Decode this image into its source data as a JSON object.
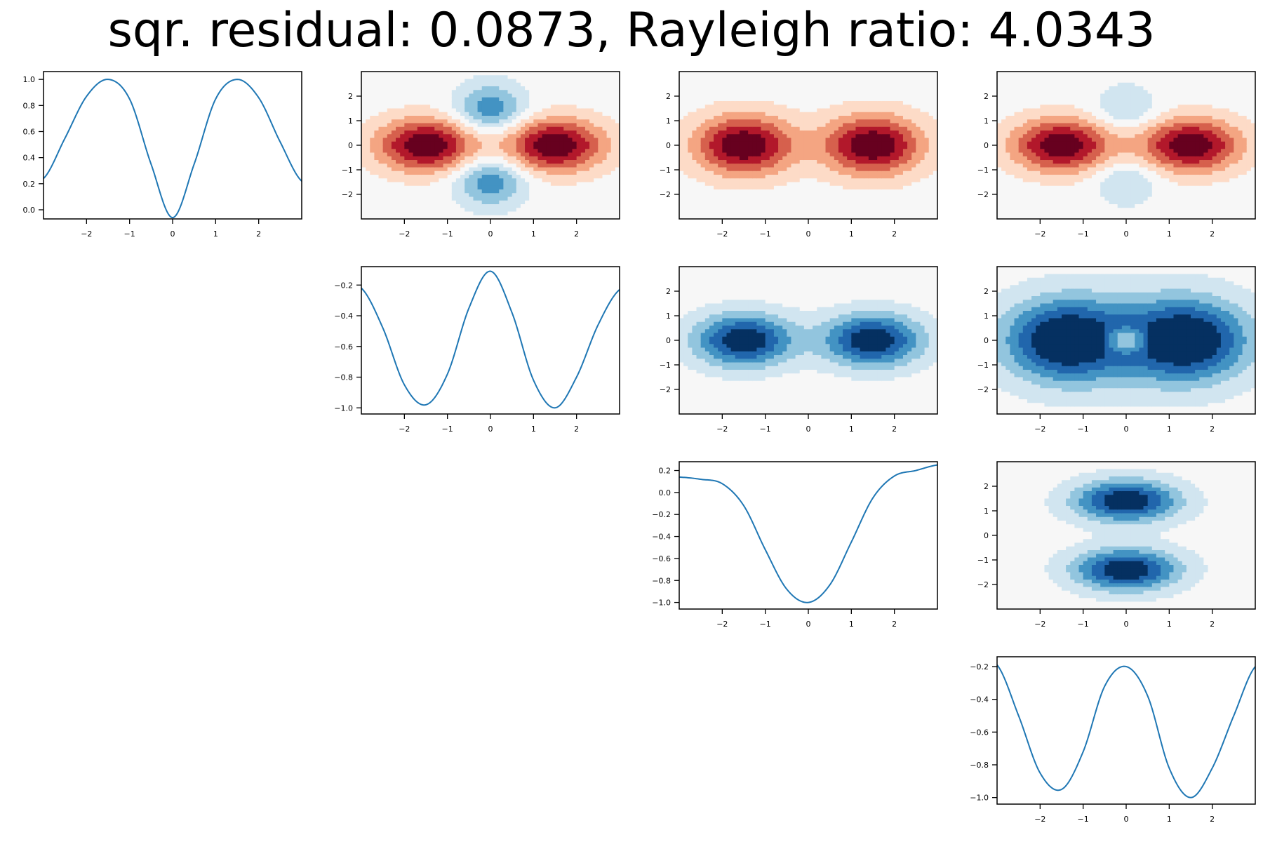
{
  "title": "sqr. residual: 0.0873, Rayleigh ratio: 4.0343",
  "colors": {
    "line": "#1f77b4",
    "rdbu": [
      "#053061",
      "#2166ac",
      "#4393c3",
      "#92c5de",
      "#d1e5f0",
      "#f7f7f7",
      "#fddbc7",
      "#f4a582",
      "#d6604d",
      "#b2182b",
      "#67001f"
    ]
  },
  "chart_data": [
    {
      "id": "p11",
      "type": "line",
      "row": 0,
      "col": 0,
      "x_ticks": [
        -2,
        -1,
        0,
        1,
        2
      ],
      "x_tick_labels": [
        "−2",
        "−1",
        "0",
        "1",
        "2"
      ],
      "y_ticks": [
        0.0,
        0.2,
        0.4,
        0.6,
        0.8,
        1.0
      ],
      "y_tick_labels": [
        "0.0",
        "0.2",
        "0.4",
        "0.6",
        "0.8",
        "1.0"
      ],
      "xlim": [
        -3,
        3
      ],
      "ylim": [
        -0.07,
        1.06
      ],
      "x": [
        -3.0,
        -2.5,
        -2.0,
        -1.5,
        -1.0,
        -0.5,
        0.0,
        0.5,
        1.0,
        1.5,
        2.0,
        2.5,
        3.0
      ],
      "y": [
        0.24,
        0.55,
        0.87,
        1.0,
        0.85,
        0.35,
        -0.06,
        0.35,
        0.85,
        1.0,
        0.86,
        0.52,
        0.22
      ]
    },
    {
      "id": "p12",
      "type": "heatmap",
      "row": 0,
      "col": 1,
      "cmap": "RdBu_r",
      "x_ticks": [
        -2,
        -1,
        0,
        1,
        2
      ],
      "x_tick_labels": [
        "−2",
        "−1",
        "0",
        "1",
        "2"
      ],
      "y_ticks": [
        -2,
        -1,
        0,
        1,
        2
      ],
      "y_tick_labels": [
        "−2",
        "−1",
        "0",
        "1",
        "2"
      ],
      "xlim": [
        -3,
        3
      ],
      "ylim": [
        -3,
        3
      ],
      "vrange": [
        -1,
        1
      ],
      "blobs": [
        {
          "x": -1.5,
          "y": 0,
          "sx": 0.8,
          "sy": 0.75,
          "a": 1.0
        },
        {
          "x": 1.5,
          "y": 0,
          "sx": 0.8,
          "sy": 0.75,
          "a": 1.0
        },
        {
          "x": 0,
          "y": 1.5,
          "sx": 0.55,
          "sy": 0.7,
          "a": -0.6
        },
        {
          "x": 0,
          "y": -1.5,
          "sx": 0.55,
          "sy": 0.7,
          "a": -0.6
        }
      ]
    },
    {
      "id": "p13",
      "type": "heatmap",
      "row": 0,
      "col": 2,
      "cmap": "RdBu_r",
      "x_ticks": [
        -2,
        -1,
        0,
        1,
        2
      ],
      "x_tick_labels": [
        "−2",
        "−1",
        "0",
        "1",
        "2"
      ],
      "y_ticks": [
        -2,
        -1,
        0,
        1,
        2
      ],
      "y_tick_labels": [
        "−2",
        "−1",
        "0",
        "1",
        "2"
      ],
      "xlim": [
        -3,
        3
      ],
      "ylim": [
        -3,
        3
      ],
      "vrange": [
        -1,
        1
      ],
      "blobs": [
        {
          "x": -1.5,
          "y": 0,
          "sx": 0.8,
          "sy": 0.85,
          "a": 1.0
        },
        {
          "x": 1.5,
          "y": 0,
          "sx": 0.8,
          "sy": 0.85,
          "a": 1.0
        }
      ]
    },
    {
      "id": "p14",
      "type": "heatmap",
      "row": 0,
      "col": 3,
      "cmap": "RdBu_r",
      "x_ticks": [
        -2,
        -1,
        0,
        1,
        2
      ],
      "x_tick_labels": [
        "−2",
        "−1",
        "0",
        "1",
        "2"
      ],
      "y_ticks": [
        -2,
        -1,
        0,
        1,
        2
      ],
      "y_tick_labels": [
        "−2",
        "−1",
        "0",
        "1",
        "2"
      ],
      "xlim": [
        -3,
        3
      ],
      "ylim": [
        -3,
        3
      ],
      "vrange": [
        -1,
        1
      ],
      "blobs": [
        {
          "x": -1.5,
          "y": 0,
          "sx": 0.8,
          "sy": 0.75,
          "a": 1.0
        },
        {
          "x": 1.5,
          "y": 0,
          "sx": 0.8,
          "sy": 0.75,
          "a": 1.0
        },
        {
          "x": 0,
          "y": 1.5,
          "sx": 0.5,
          "sy": 0.65,
          "a": -0.3
        },
        {
          "x": 0,
          "y": -1.5,
          "sx": 0.5,
          "sy": 0.65,
          "a": -0.3
        }
      ]
    },
    {
      "id": "p22",
      "type": "line",
      "row": 1,
      "col": 1,
      "x_ticks": [
        -2,
        -1,
        0,
        1,
        2
      ],
      "x_tick_labels": [
        "−2",
        "−1",
        "0",
        "1",
        "2"
      ],
      "y_ticks": [
        -1.0,
        -0.8,
        -0.6,
        -0.4,
        -0.2
      ],
      "y_tick_labels": [
        "−1.0",
        "−0.8",
        "−0.6",
        "−0.4",
        "−0.2"
      ],
      "xlim": [
        -3,
        3
      ],
      "ylim": [
        -1.04,
        -0.08
      ],
      "x": [
        -3.0,
        -2.5,
        -2.0,
        -1.5,
        -1.0,
        -0.5,
        0.0,
        0.5,
        1.0,
        1.5,
        2.0,
        2.5,
        3.0
      ],
      "y": [
        -0.22,
        -0.48,
        -0.85,
        -0.98,
        -0.78,
        -0.35,
        -0.11,
        -0.38,
        -0.82,
        -1.0,
        -0.8,
        -0.46,
        -0.23
      ]
    },
    {
      "id": "p23",
      "type": "heatmap",
      "row": 1,
      "col": 2,
      "cmap": "RdBu_r",
      "x_ticks": [
        -2,
        -1,
        0,
        1,
        2
      ],
      "x_tick_labels": [
        "−2",
        "−1",
        "0",
        "1",
        "2"
      ],
      "y_ticks": [
        -2,
        -1,
        0,
        1,
        2
      ],
      "y_tick_labels": [
        "−2",
        "−1",
        "0",
        "1",
        "2"
      ],
      "xlim": [
        -3,
        3
      ],
      "ylim": [
        -3,
        3
      ],
      "vrange": [
        -1,
        1
      ],
      "blobs": [
        {
          "x": -1.5,
          "y": 0,
          "sx": 0.8,
          "sy": 0.75,
          "a": -1.0
        },
        {
          "x": 1.5,
          "y": 0,
          "sx": 0.8,
          "sy": 0.75,
          "a": -1.0
        }
      ]
    },
    {
      "id": "p24",
      "type": "heatmap",
      "row": 1,
      "col": 3,
      "cmap": "RdBu_r",
      "x_ticks": [
        -2,
        -1,
        0,
        1,
        2
      ],
      "x_tick_labels": [
        "−2",
        "−1",
        "0",
        "1",
        "2"
      ],
      "y_ticks": [
        -2,
        -1,
        0,
        1,
        2
      ],
      "y_tick_labels": [
        "−2",
        "−1",
        "0",
        "1",
        "2"
      ],
      "xlim": [
        -3,
        3
      ],
      "ylim": [
        -3,
        3
      ],
      "vrange": [
        -1,
        1
      ],
      "blobs": [
        {
          "x": -1.5,
          "y": 0,
          "sx": 0.9,
          "sy": 1.1,
          "a": -0.8
        },
        {
          "x": 1.5,
          "y": 0,
          "sx": 0.9,
          "sy": 1.1,
          "a": -0.8
        },
        {
          "x": 0,
          "y": 0,
          "sx": 1.8,
          "sy": 1.4,
          "a": -0.5
        },
        {
          "x": 0,
          "y": 0,
          "sx": 0.35,
          "sy": 0.35,
          "a": 0.6
        }
      ]
    },
    {
      "id": "p33",
      "type": "line",
      "row": 2,
      "col": 2,
      "x_ticks": [
        -2,
        -1,
        0,
        1,
        2
      ],
      "x_tick_labels": [
        "−2",
        "−1",
        "0",
        "1",
        "2"
      ],
      "y_ticks": [
        -1.0,
        -0.8,
        -0.6,
        -0.4,
        -0.2,
        0.0,
        0.2
      ],
      "y_tick_labels": [
        "−1.0",
        "−0.8",
        "−0.6",
        "−0.4",
        "−0.2",
        "0.0",
        "0.2"
      ],
      "xlim": [
        -3,
        3
      ],
      "ylim": [
        -1.06,
        0.28
      ],
      "x": [
        -3.0,
        -2.5,
        -2.0,
        -1.5,
        -1.0,
        -0.5,
        0.0,
        0.5,
        1.0,
        1.5,
        2.0,
        2.5,
        3.0
      ],
      "y": [
        0.14,
        0.12,
        0.08,
        -0.12,
        -0.52,
        -0.88,
        -1.0,
        -0.84,
        -0.45,
        -0.05,
        0.15,
        0.2,
        0.25
      ]
    },
    {
      "id": "p34",
      "type": "heatmap",
      "row": 2,
      "col": 3,
      "cmap": "RdBu_r",
      "x_ticks": [
        -2,
        -1,
        0,
        1,
        2
      ],
      "x_tick_labels": [
        "−2",
        "−1",
        "0",
        "1",
        "2"
      ],
      "y_ticks": [
        -2,
        -1,
        0,
        1,
        2
      ],
      "y_tick_labels": [
        "−2",
        "−1",
        "0",
        "1",
        "2"
      ],
      "xlim": [
        -3,
        3
      ],
      "ylim": [
        -3,
        3
      ],
      "vrange": [
        -1,
        1
      ],
      "blobs": [
        {
          "x": 0,
          "y": 1.4,
          "sx": 0.85,
          "sy": 0.6,
          "a": -1.0
        },
        {
          "x": 0,
          "y": -1.4,
          "sx": 0.85,
          "sy": 0.6,
          "a": -1.0
        }
      ]
    },
    {
      "id": "p44",
      "type": "line",
      "row": 3,
      "col": 3,
      "x_ticks": [
        -2,
        -1,
        0,
        1,
        2
      ],
      "x_tick_labels": [
        "−2",
        "−1",
        "0",
        "1",
        "2"
      ],
      "y_ticks": [
        -1.0,
        -0.8,
        -0.6,
        -0.4,
        -0.2
      ],
      "y_tick_labels": [
        "−1.0",
        "−0.8",
        "−0.6",
        "−0.4",
        "−0.2"
      ],
      "xlim": [
        -3,
        3
      ],
      "ylim": [
        -1.04,
        -0.14
      ],
      "x": [
        -3.0,
        -2.5,
        -2.0,
        -1.5,
        -1.0,
        -0.5,
        0.0,
        0.5,
        1.0,
        1.5,
        2.0,
        2.5,
        3.0
      ],
      "y": [
        -0.19,
        -0.5,
        -0.85,
        -0.95,
        -0.72,
        -0.32,
        -0.2,
        -0.38,
        -0.82,
        -1.0,
        -0.82,
        -0.5,
        -0.2
      ]
    }
  ]
}
